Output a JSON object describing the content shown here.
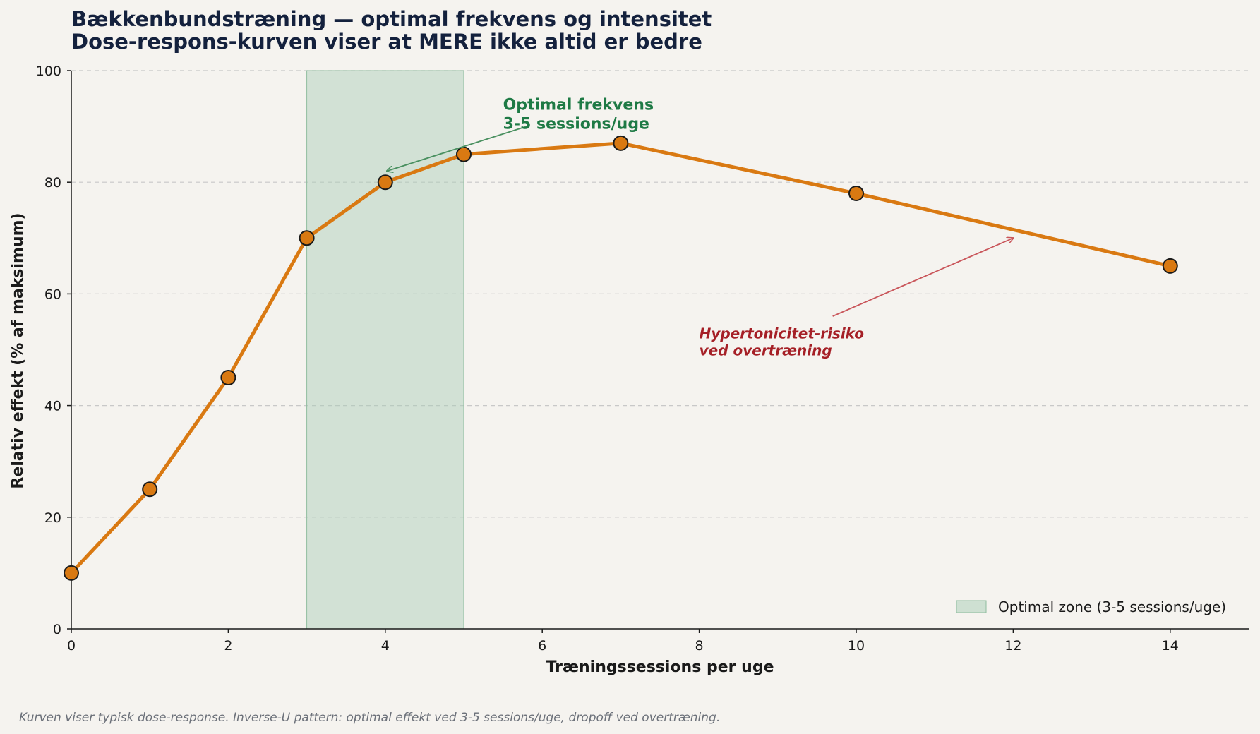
{
  "chart_data": {
    "type": "line",
    "title": "Bækkenbundstræning — optimal frekvens og intensitet",
    "subtitle": "Dose-respons-kurven viser at MERE ikke altid er bedre",
    "xlabel": "Træningssessions per uge",
    "ylabel": "Relativ effekt (% af maksimum)",
    "xlim": [
      0,
      15
    ],
    "ylim": [
      0,
      100
    ],
    "x_ticks": [
      0,
      2,
      4,
      6,
      8,
      10,
      12,
      14
    ],
    "y_ticks": [
      0,
      20,
      40,
      60,
      80,
      100
    ],
    "grid": "horizontal dashed",
    "series": [
      {
        "x": [
          0,
          1,
          2,
          3,
          4,
          5,
          7,
          10,
          14
        ],
        "y": [
          10,
          25,
          45,
          70,
          80,
          85,
          87,
          78,
          65
        ],
        "color": "#d97912",
        "marker_color": "#d97912",
        "marker_edge": "#1a1a1a"
      }
    ],
    "shaded_region": {
      "x_start": 3,
      "x_end": 5,
      "color": "#a8cdb5",
      "label": "Optimal zone (3-5 sessions/uge)"
    },
    "legend": {
      "position": "lower-right",
      "entries": [
        "Optimal zone (3-5 sessions/uge)"
      ]
    },
    "annotations": [
      {
        "lines": [
          "Optimal frekvens",
          "3-5 sessions/uge"
        ],
        "text_at": [
          5.5,
          93
        ],
        "arrow_from": [
          5.8,
          90
        ],
        "arrow_to": [
          4.02,
          82
        ],
        "color": "#1e7a45",
        "arrow_color": "#4a9060"
      },
      {
        "lines": [
          "Hypertonicitet-risiko",
          "ved overtræning"
        ],
        "text_at": [
          8,
          52
        ],
        "arrow_from": [
          9.7,
          56
        ],
        "arrow_to": [
          12,
          70
        ],
        "color": "#a51f26",
        "arrow_color": "#c9555a"
      }
    ]
  },
  "footnote": "Kurven viser typisk dose-response. Inverse-U pattern: optimal effekt ved 3-5 sessions/uge, dropoff ved overtræning.",
  "colors": {
    "background": "#f5f3ef",
    "title": "#14213d",
    "line": "#d97912",
    "zone": "#a8cdb5"
  }
}
